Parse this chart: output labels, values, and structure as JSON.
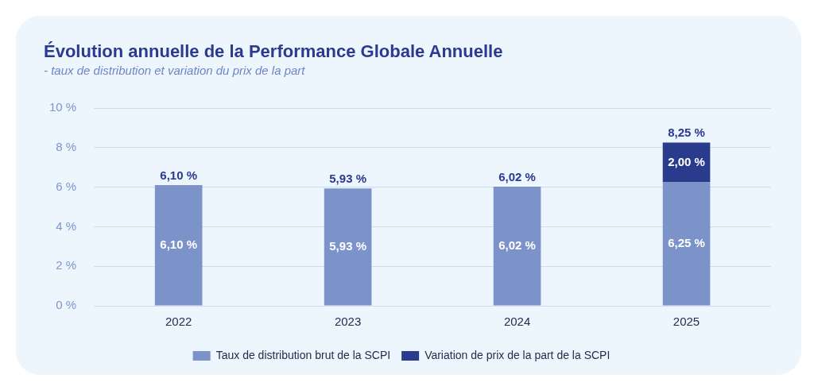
{
  "chart_data": {
    "type": "bar",
    "title": "Évolution annuelle de la Performance Globale Annuelle",
    "subtitle": "- taux de distribution et variation du prix de la part",
    "categories": [
      "2022",
      "2023",
      "2024",
      "2025"
    ],
    "stacked": true,
    "series": [
      {
        "name": "Taux de distribution brut de la SCPI",
        "color": "#7b93c9",
        "values": [
          6.1,
          5.93,
          6.02,
          6.25
        ],
        "value_labels": [
          "6,10 %",
          "5,93 %",
          "6,02 %",
          "6,25 %"
        ]
      },
      {
        "name": "Variation de prix de la part de la SCPI",
        "color": "#2a3a8c",
        "values": [
          null,
          null,
          null,
          2.0
        ],
        "value_labels": [
          null,
          null,
          null,
          "2,00 %"
        ]
      }
    ],
    "totals": [
      "6,10 %",
      "5,93 %",
      "6,02 %",
      "8,25 %"
    ],
    "ylim": [
      0,
      10
    ],
    "yticks": [
      {
        "value": 0,
        "label": "0 %"
      },
      {
        "value": 2,
        "label": "2 %"
      },
      {
        "value": 4,
        "label": "4 %"
      },
      {
        "value": 6,
        "label": "6 %"
      },
      {
        "value": 8,
        "label": "8 %"
      },
      {
        "value": 10,
        "label": "10 %"
      }
    ],
    "grid": "y",
    "legend": "bottom"
  }
}
